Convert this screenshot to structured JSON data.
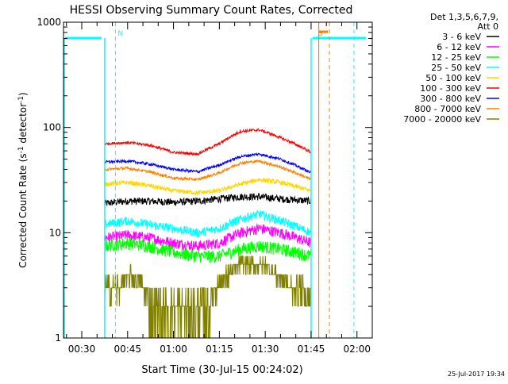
{
  "chart_data": {
    "type": "line",
    "title": "HESSI Observing Summary Count Rates, Corrected",
    "xlabel": "Start Time (30-Jul-15 00:24:02)",
    "ylabel_main": "Corrected Count Rate (s",
    "ylabel_sup1": "-1",
    "ylabel_mid": " detector",
    "ylabel_sup2": "-1",
    "ylabel_end": ")",
    "y_scale": "log",
    "ylim": [
      1,
      1000
    ],
    "y_ticks": [
      {
        "value": 1,
        "label": "1"
      },
      {
        "value": 10,
        "label": "10"
      },
      {
        "value": 100,
        "label": "100"
      },
      {
        "value": 1000,
        "label": "1000"
      }
    ],
    "xlim_minutes": [
      24.03,
      125
    ],
    "x_ticks": [
      {
        "minute": 30,
        "label": "00:30"
      },
      {
        "minute": 45,
        "label": "00:45"
      },
      {
        "minute": 60,
        "label": "01:00"
      },
      {
        "minute": 75,
        "label": "01:15"
      },
      {
        "minute": 90,
        "label": "01:30"
      },
      {
        "minute": 105,
        "label": "01:45"
      },
      {
        "minute": 120,
        "label": "02:00"
      }
    ],
    "legend_header": [
      "Det 1,3,5,6,7,9,",
      "Att 0"
    ],
    "legend_position": "right",
    "footer_timestamp": "25-Jul-2017 19:34",
    "data_start_minute": 37.5,
    "data_end_minute": 105,
    "series": [
      {
        "name": "3 - 6 keV",
        "color": "#000000",
        "x": [
          37.5,
          45,
          52,
          60,
          68,
          75,
          82,
          88,
          95,
          105
        ],
        "values": [
          19,
          20,
          20,
          19.5,
          20,
          21,
          22,
          22,
          21,
          20
        ]
      },
      {
        "name": "6 - 12 keV",
        "color": "#ff00ff",
        "x": [
          37.5,
          45,
          52,
          60,
          68,
          75,
          82,
          88,
          95,
          105
        ],
        "values": [
          9,
          9.5,
          9,
          8,
          7.5,
          8,
          10,
          11,
          10,
          8
        ]
      },
      {
        "name": "12 - 25 keV",
        "color": "#00ff00",
        "x": [
          37.5,
          45,
          52,
          60,
          68,
          75,
          82,
          88,
          95,
          105
        ],
        "values": [
          7.5,
          8,
          7.5,
          6.5,
          6,
          6,
          7,
          7.5,
          7,
          6
        ]
      },
      {
        "name": "25 - 50 keV",
        "color": "#00ffff",
        "x": [
          37.5,
          45,
          52,
          60,
          68,
          75,
          82,
          88,
          95,
          105
        ],
        "values": [
          12,
          13,
          12,
          11,
          10,
          11,
          13.5,
          15,
          13,
          10
        ]
      },
      {
        "name": "50 - 100 keV",
        "color": "#ffd700",
        "x": [
          37.5,
          45,
          52,
          60,
          68,
          75,
          82,
          88,
          95,
          105
        ],
        "values": [
          29,
          30,
          28,
          25,
          24,
          25,
          29,
          32,
          30,
          25
        ]
      },
      {
        "name": "100 - 300 keV",
        "color": "#ff0000",
        "x": [
          37.5,
          45,
          52,
          60,
          68,
          75,
          82,
          88,
          95,
          105
        ],
        "values": [
          70,
          72,
          68,
          58,
          56,
          70,
          92,
          95,
          80,
          58
        ]
      },
      {
        "name": "300 - 800 keV",
        "color": "#0000ff",
        "x": [
          37.5,
          45,
          52,
          60,
          68,
          75,
          82,
          88,
          95,
          105
        ],
        "values": [
          47,
          48,
          45,
          40,
          38,
          44,
          53,
          56,
          50,
          37
        ]
      },
      {
        "name": "800 - 7000 keV",
        "color": "#ff8000",
        "x": [
          37.5,
          45,
          52,
          60,
          68,
          75,
          82,
          88,
          95,
          105
        ],
        "values": [
          40,
          41,
          38,
          33,
          32,
          37,
          46,
          48,
          42,
          32
        ]
      },
      {
        "name": "7000 - 20000 keV",
        "color": "#808000",
        "x": [
          37.5,
          42,
          46,
          50,
          54,
          58,
          62,
          66,
          70,
          74,
          78,
          82,
          86,
          90,
          94,
          98,
          102,
          105
        ],
        "values": [
          3,
          3,
          4,
          3,
          2,
          2,
          2,
          2,
          2,
          3,
          4,
          5,
          5,
          5,
          4,
          3,
          3,
          2
        ]
      }
    ],
    "flag_markers": [
      {
        "label": "N",
        "minute": 41,
        "color": "#00ffff"
      },
      {
        "label": "S",
        "minute": 106.5,
        "color": "#ff8000"
      }
    ]
  }
}
